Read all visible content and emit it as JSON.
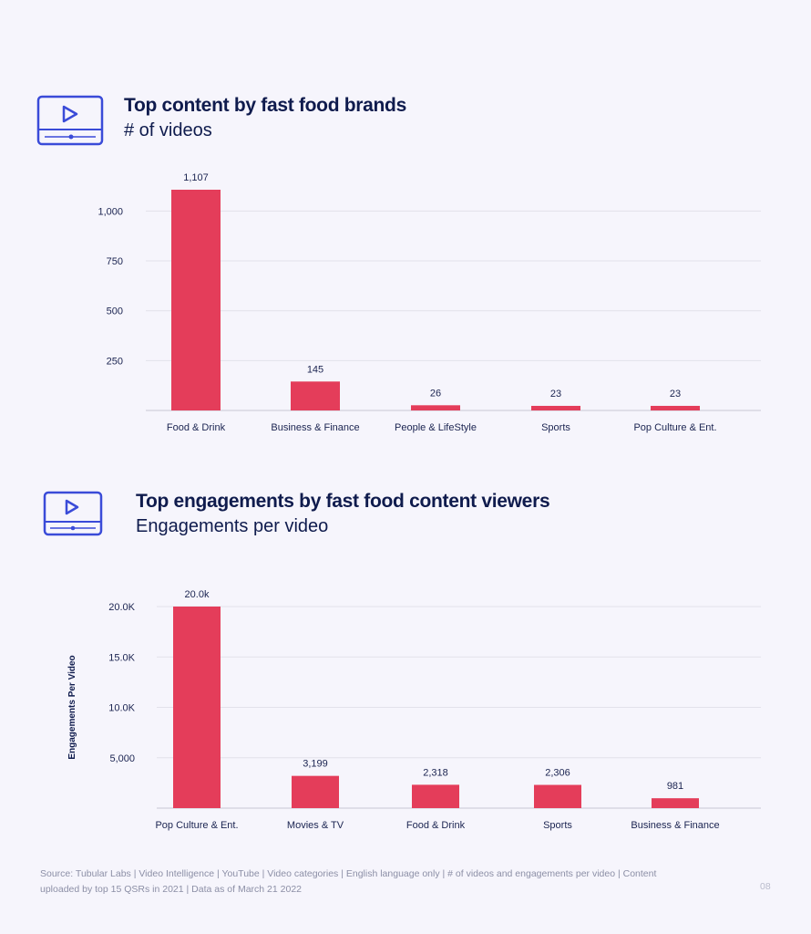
{
  "colors": {
    "bar": "#e43d5a",
    "grid": "#e2e1ea",
    "axis": "#c8c7d3",
    "text": "#0f1b4d",
    "icon": "#3a4bd8"
  },
  "section1": {
    "icon": "video-player-icon",
    "title": "Top content by fast food brands",
    "subtitle": "# of videos"
  },
  "section2": {
    "icon": "video-player-icon",
    "title": "Top engagements by fast food content viewers",
    "subtitle": "Engagements per video"
  },
  "chart_data": [
    {
      "type": "bar",
      "title": "Top content by fast food brands",
      "subtitle": "# of videos",
      "xlabel": "",
      "ylabel": "",
      "categories": [
        "Food & Drink",
        "Business & Finance",
        "People & LifeStyle",
        "Sports",
        "Pop Culture & Ent."
      ],
      "values": [
        1107,
        145,
        26,
        23,
        23
      ],
      "value_labels": [
        "1,107",
        "145",
        "26",
        "23",
        "23"
      ],
      "yticks": [
        250,
        500,
        750,
        1000
      ],
      "ytick_labels": [
        "250",
        "500",
        "750",
        "1,000"
      ],
      "ylim": [
        0,
        1107
      ],
      "grid": true
    },
    {
      "type": "bar",
      "title": "Top engagements by fast food content viewers",
      "subtitle": "Engagements per video",
      "xlabel": "",
      "ylabel": "Engagements Per Video",
      "categories": [
        "Pop Culture & Ent.",
        "Movies & TV",
        "Food & Drink",
        "Sports",
        "Business & Finance"
      ],
      "values": [
        20000,
        3199,
        2318,
        2306,
        981
      ],
      "value_labels": [
        "20.0k",
        "3,199",
        "2,318",
        "2,306",
        "981"
      ],
      "yticks": [
        5000,
        10000,
        15000,
        20000
      ],
      "ytick_labels": [
        "5,000",
        "10.0K",
        "15.0K",
        "20.0K"
      ],
      "ylim": [
        0,
        20000
      ],
      "grid": true
    }
  ],
  "footer": {
    "source": "Source: Tubular Labs | Video Intelligence | YouTube | Video categories | English language only | # of videos and engagements per video | Content uploaded by top 15 QSRs in 2021 | Data as of March 21 2022",
    "page_number": "08"
  }
}
